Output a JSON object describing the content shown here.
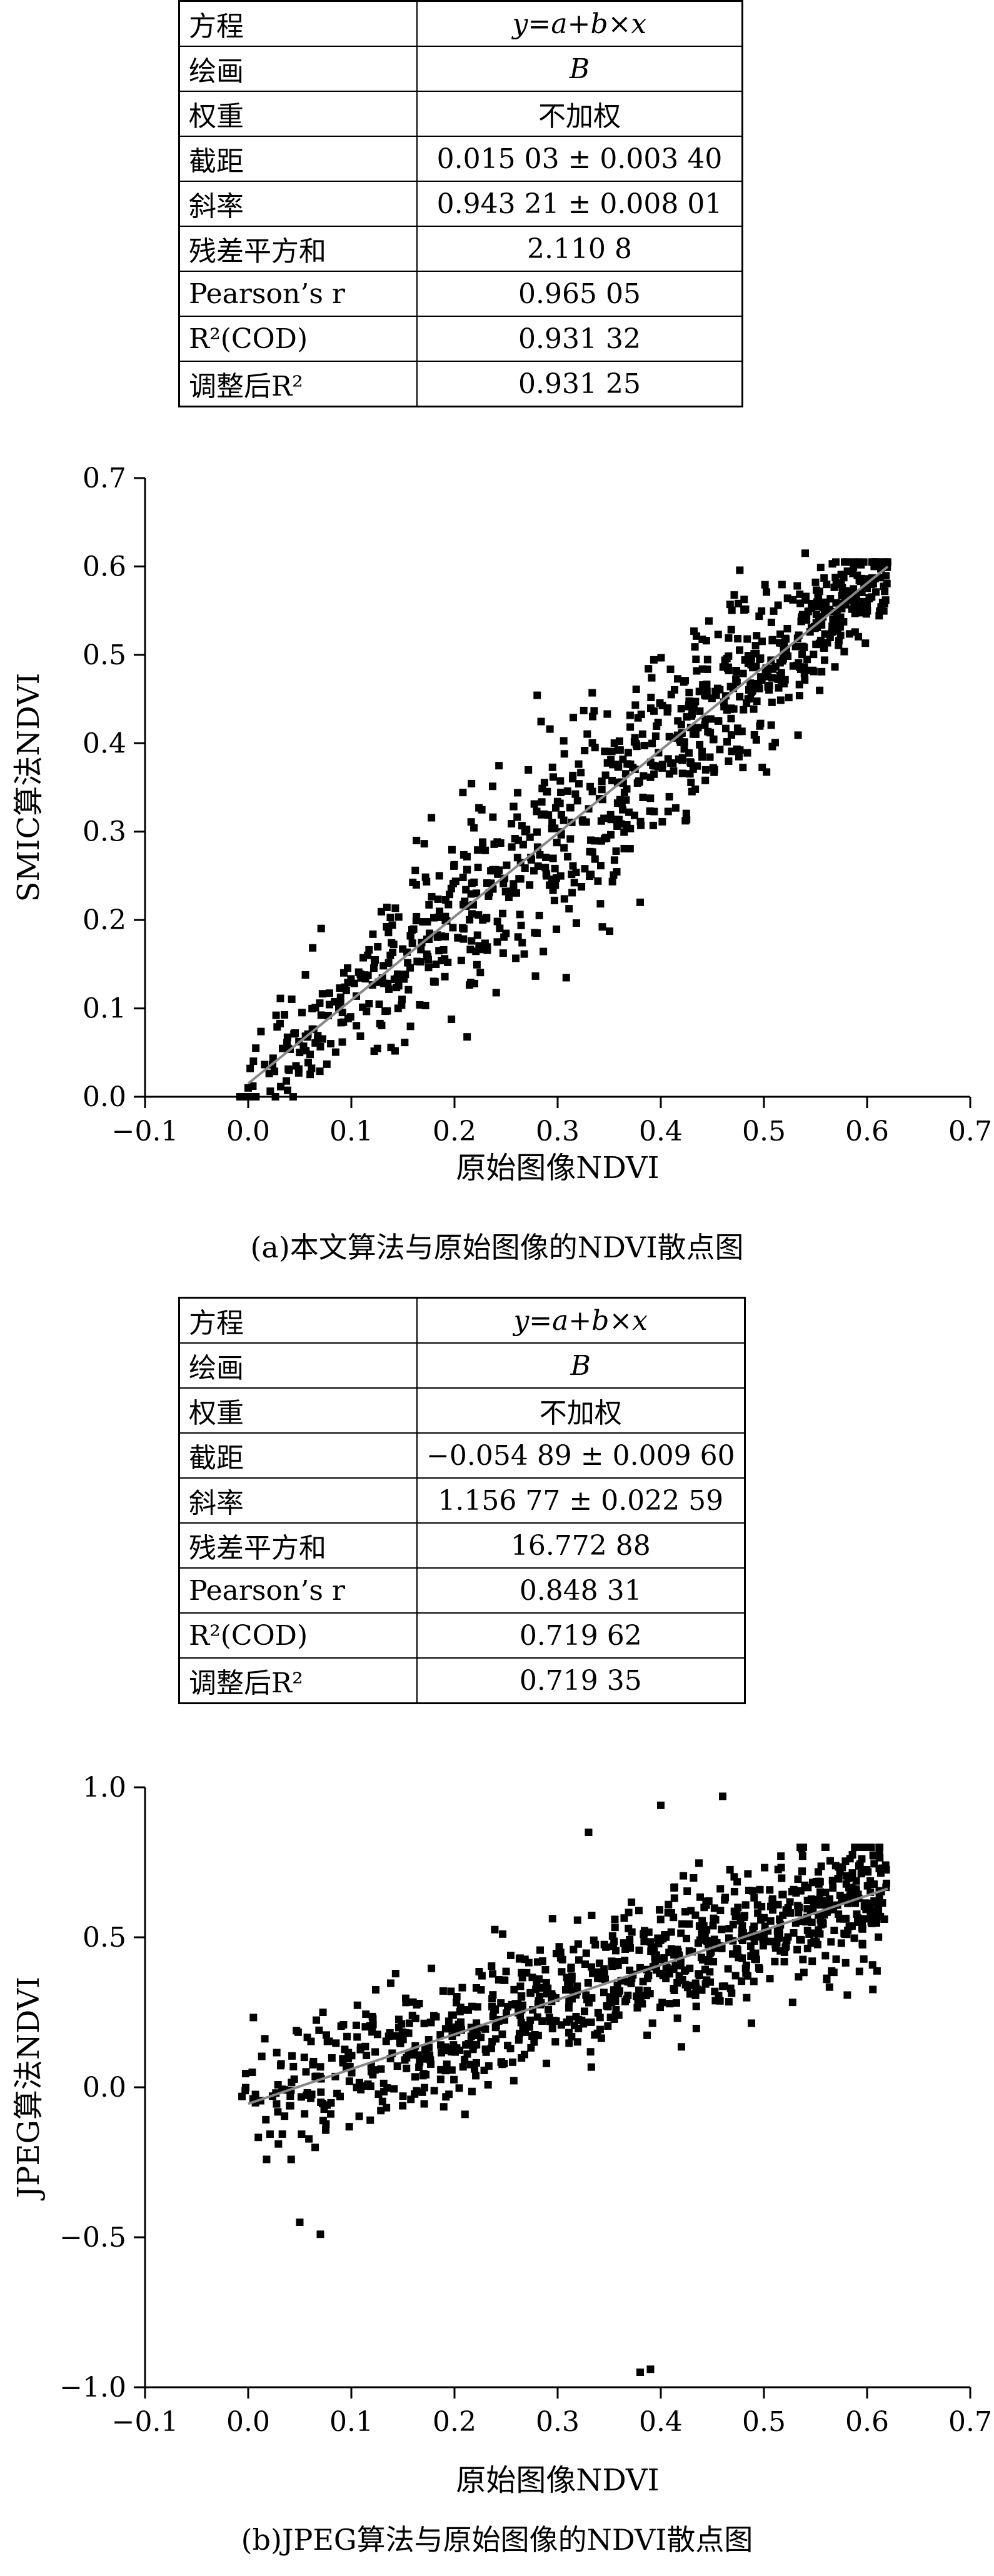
{
  "chart_data": [
    {
      "type": "scatter",
      "title": "",
      "caption": "(a)本文算法与原始图像的NDVI散点图",
      "xlabel": "原始图像NDVI",
      "ylabel": "SMIC算法NDVI",
      "xlim": [
        -0.1,
        0.7
      ],
      "ylim": [
        0.0,
        0.7
      ],
      "xticks": [
        "-0.1",
        "0.0",
        "0.1",
        "0.2",
        "0.3",
        "0.4",
        "0.5",
        "0.6",
        "0.7"
      ],
      "yticks": [
        "0.0",
        "0.1",
        "0.2",
        "0.3",
        "0.4",
        "0.5",
        "0.6",
        "0.7"
      ],
      "grid": false,
      "fit_table": {
        "rows": [
          {
            "key": "方程",
            "value": "y=a+b×x"
          },
          {
            "key": "绘画",
            "value": "B"
          },
          {
            "key": "权重",
            "value": "不加权"
          },
          {
            "key": "截距",
            "value": "0.015 03 ± 0.003 40"
          },
          {
            "key": "斜率",
            "value": "0.943 21 ± 0.008 01"
          },
          {
            "key": "残差平方和",
            "value": "2.110 8"
          },
          {
            "key": "Pearson’s r",
            "value": "0.965 05"
          },
          {
            "key": "R²(COD)",
            "value": "0.931 32"
          },
          {
            "key": "调整后R²",
            "value": "0.931 25"
          }
        ]
      },
      "fit_line": {
        "intercept": 0.01503,
        "slope": 0.94321,
        "x_range": [
          0.0,
          0.62
        ]
      },
      "points": {
        "n": 1000,
        "x_range": [
          -0.01,
          0.62
        ],
        "noise_sd": 0.038,
        "notable": [
          [
            0.54,
            0.615
          ],
          [
            0.0,
            0.01
          ],
          [
            0.38,
            0.22
          ]
        ]
      }
    },
    {
      "type": "scatter",
      "title": "",
      "caption": "(b)JPEG算法与原始图像的NDVI散点图",
      "xlabel": "原始图像NDVI",
      "ylabel": "JPEG算法NDVI",
      "xlim": [
        -0.1,
        0.7
      ],
      "ylim": [
        -1.0,
        1.0
      ],
      "xticks": [
        "-0.1",
        "0.0",
        "0.1",
        "0.2",
        "0.3",
        "0.4",
        "0.5",
        "0.6",
        "0.7"
      ],
      "yticks": [
        "-1.0",
        "-0.5",
        "0.0",
        "0.5",
        "1.0"
      ],
      "grid": false,
      "fit_table": {
        "rows": [
          {
            "key": "方程",
            "value": "y=a+b×x"
          },
          {
            "key": "绘画",
            "value": "B"
          },
          {
            "key": "权重",
            "value": "不加权"
          },
          {
            "key": "截距",
            "value": "−0.054 89 ± 0.009 60"
          },
          {
            "key": "斜率",
            "value": "1.156 77 ± 0.022 59"
          },
          {
            "key": "残差平方和",
            "value": "16.772 88"
          },
          {
            "key": "Pearson’s r",
            "value": "0.848 31"
          },
          {
            "key": "R²(COD)",
            "value": "0.719 62"
          },
          {
            "key": "调整后R²",
            "value": "0.719 35"
          }
        ]
      },
      "fit_line": {
        "intercept": -0.05489,
        "slope": 1.15677,
        "x_range": [
          0.0,
          0.62
        ]
      },
      "points": {
        "n": 1000,
        "x_range": [
          -0.01,
          0.62
        ],
        "noise_sd": 0.11,
        "notable": [
          [
            0.38,
            -0.95
          ],
          [
            0.39,
            -0.94
          ],
          [
            0.05,
            -0.45
          ],
          [
            0.07,
            -0.49
          ],
          [
            0.4,
            0.94
          ],
          [
            0.46,
            0.97
          ],
          [
            0.33,
            0.85
          ]
        ]
      }
    }
  ]
}
